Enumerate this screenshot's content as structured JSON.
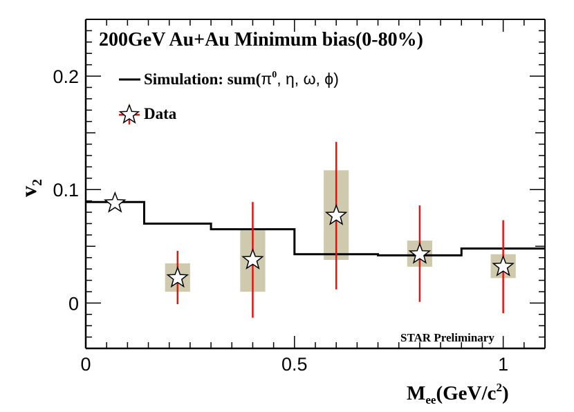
{
  "chart_data": {
    "type": "scatter",
    "title": "200GeV Au+Au Minimum bias(0-80%)",
    "xlabel_main": "M",
    "xlabel_sub": "ee",
    "xlabel_rest": "(GeV/c",
    "xlabel_sup": "2",
    "xlabel_end": ")",
    "ylabel_main": "v",
    "ylabel_sub": "2",
    "xlim": [
      0,
      1.1
    ],
    "ylim": [
      -0.04,
      0.25
    ],
    "xticks": [
      0,
      0.5,
      1
    ],
    "xtick_labels": [
      "0",
      "0.5",
      "1"
    ],
    "yticks": [
      0,
      0.1,
      0.2
    ],
    "ytick_labels": [
      "0",
      "0.1",
      "0.2"
    ],
    "legend": {
      "position": "top-left",
      "simulation_label_prefix": "Simulation: sum(",
      "simulation_pi": "π",
      "simulation_pi_sup": "0",
      "simulation_label_rest": ", η, ω, ϕ)",
      "data_label": "Data"
    },
    "annotation": "STAR Preliminary",
    "simulation": {
      "name": "Simulation: sum(π0, η, ω, ϕ)",
      "edges": [
        0,
        0.14,
        0.3,
        0.5,
        0.7,
        0.9,
        1.1
      ],
      "values": [
        0.089,
        0.07,
        0.065,
        0.043,
        0.042,
        0.048
      ]
    },
    "data": {
      "name": "Data",
      "x": [
        0.07,
        0.22,
        0.4,
        0.6,
        0.8,
        1.0
      ],
      "y": [
        0.088,
        0.022,
        0.038,
        0.077,
        0.043,
        0.032
      ],
      "stat_err_low": [
        null,
        0.023,
        0.051,
        0.065,
        0.042,
        0.041
      ],
      "stat_err_high": [
        null,
        0.024,
        0.051,
        0.065,
        0.043,
        0.041
      ],
      "sys_box_low": [
        null,
        0.01,
        0.01,
        0.038,
        0.032,
        0.022
      ],
      "sys_box_high": [
        null,
        0.035,
        0.064,
        0.117,
        0.055,
        0.043
      ]
    },
    "colors": {
      "simulation_line": "#000000",
      "error_bar": "#e8120c",
      "sys_box": "#cfc9ae",
      "marker_fill": "#ffffff",
      "marker_stroke": "#000000"
    }
  }
}
